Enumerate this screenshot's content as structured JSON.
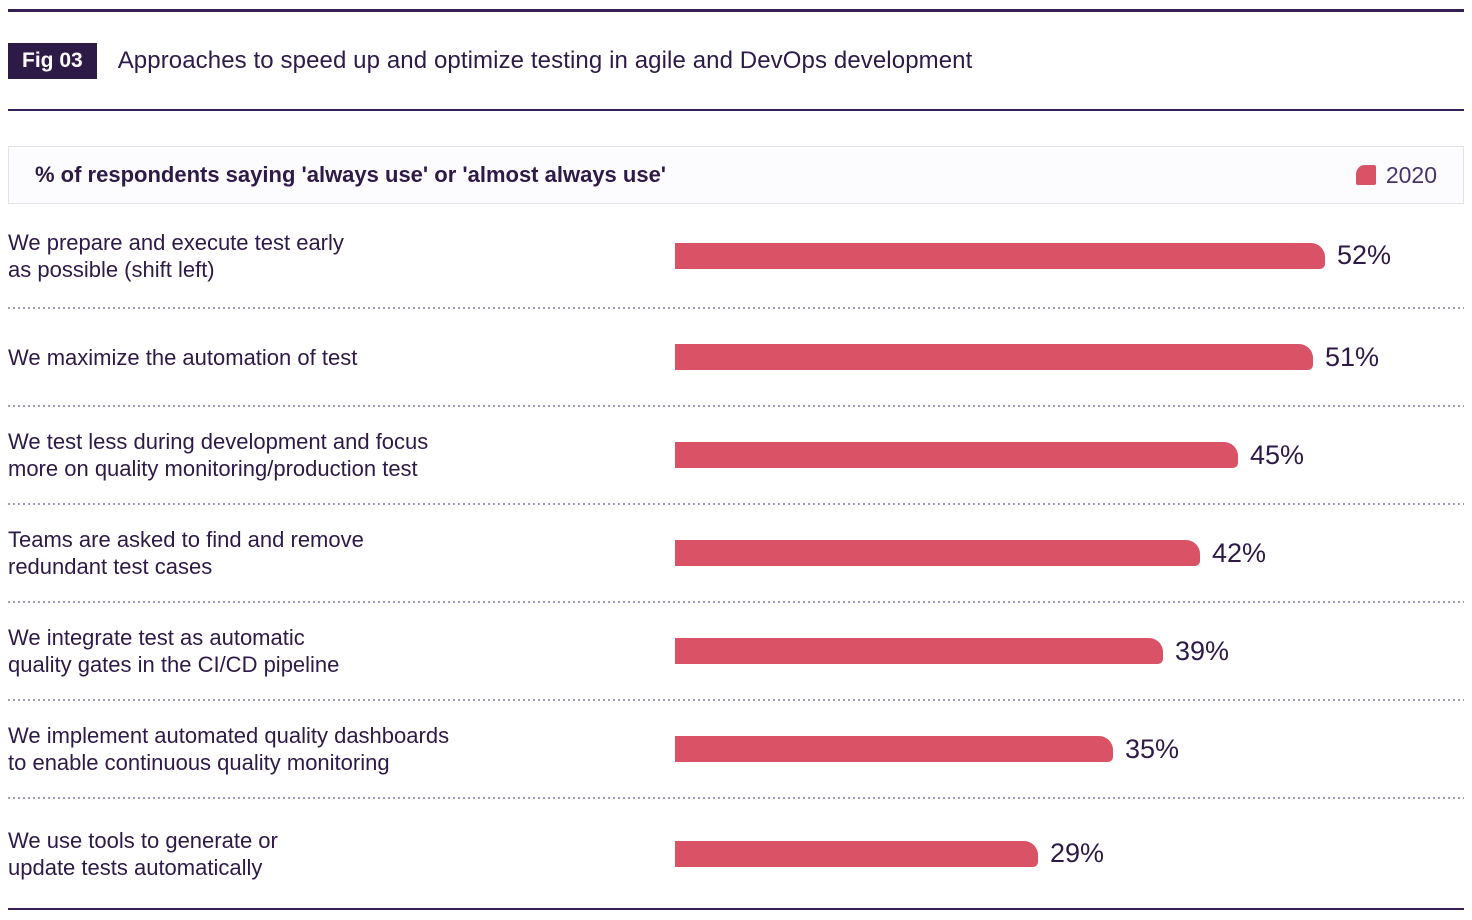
{
  "figure": {
    "badge": "Fig 03",
    "title": "Approaches to speed up and optimize testing in agile and DevOps development"
  },
  "colors": {
    "purple_dark": "#2e1a47",
    "rule_purple": "#362056",
    "bar_pink": "#da5266",
    "separator_dotted": "#a49cbe",
    "band_border": "#e2e2ea",
    "band_background": "#fcfcfe",
    "legend_text": "#473366"
  },
  "chart_data": {
    "type": "bar",
    "orientation": "horizontal",
    "title": "% of respondents saying 'always use' or 'almost always use'",
    "legend": [
      {
        "label": "2020",
        "color": "#da5266",
        "position": "top-right"
      }
    ],
    "unit": "%",
    "axis_visible": false,
    "xlim": [
      0,
      52
    ],
    "grid": false,
    "categories": [
      "We prepare and execute test early as possible (shift left)",
      "We maximize the automation of test",
      "We test less during development and focus more on quality monitoring/production test",
      "Teams are asked to find and remove redundant test cases",
      "We integrate test as automatic quality gates in the CI/CD pipeline",
      "We implement automated quality dashboards to enable continuous quality monitoring",
      "We use tools to generate or update tests automatically"
    ],
    "category_lines": [
      [
        "We prepare and execute test early",
        "as possible (shift left)"
      ],
      [
        "We maximize the automation of test"
      ],
      [
        "We test less during development and focus",
        "more on quality monitoring/production test"
      ],
      [
        "Teams are asked to find and remove",
        "redundant test cases"
      ],
      [
        "We integrate test as automatic",
        "quality gates in the CI/CD pipeline"
      ],
      [
        "We implement automated quality dashboards",
        "to enable continuous quality monitoring"
      ],
      [
        "We use tools to generate or",
        "update tests automatically"
      ]
    ],
    "values": [
      52,
      51,
      45,
      42,
      39,
      35,
      29
    ],
    "value_labels": [
      "52%",
      "51%",
      "45%",
      "42%",
      "39%",
      "35%",
      "29%"
    ]
  }
}
